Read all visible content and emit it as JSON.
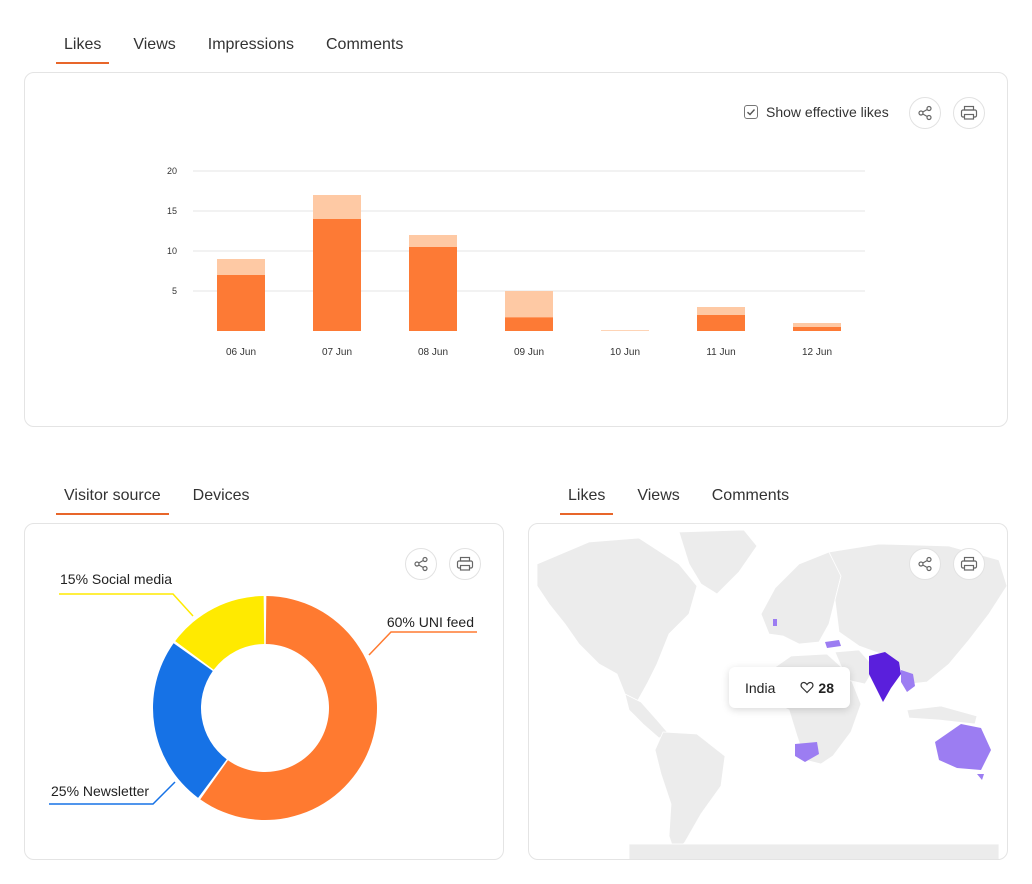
{
  "top_tabs": [
    {
      "label": "Likes",
      "active": true
    },
    {
      "label": "Views",
      "active": false
    },
    {
      "label": "Impressions",
      "active": false
    },
    {
      "label": "Comments",
      "active": false
    }
  ],
  "likes_card": {
    "show_effective_likes": {
      "label": "Show effective likes",
      "checked": true
    }
  },
  "colors": {
    "accent": "#e8662a",
    "bar_effective": "#fd7a35",
    "bar_total": "#fec9a4",
    "donut_uni_feed": "#ff7a30",
    "donut_newsletter": "#1672e6",
    "donut_social": "#ffea00",
    "map_india": "#5a1fdc",
    "map_highlight": "#9c7df2"
  },
  "chart_data": {
    "type": "bar",
    "categories": [
      "06 Jun",
      "07 Jun",
      "08 Jun",
      "09 Jun",
      "10 Jun",
      "11 Jun",
      "12 Jun"
    ],
    "series": [
      {
        "values": [
          7,
          14,
          10.5,
          1.7,
          0,
          2,
          0.5
        ]
      },
      {
        "values": [
          9,
          17,
          12,
          5,
          0.1,
          3,
          1
        ]
      }
    ],
    "yticks": [
      5,
      10,
      15,
      20
    ],
    "ylim": [
      0,
      20
    ],
    "grid": true,
    "stacked_overlay": true
  },
  "visitor_tabs": [
    {
      "label": "Visitor source",
      "active": true
    },
    {
      "label": "Devices",
      "active": false
    }
  ],
  "donut": {
    "slices": [
      {
        "label": "60% UNI feed",
        "percent": 60,
        "color": "#ff7a30"
      },
      {
        "label": "25% Newsletter",
        "percent": 25,
        "color": "#1672e6"
      },
      {
        "label": "15% Social media",
        "percent": 15,
        "color": "#ffea00"
      }
    ]
  },
  "map_tabs": [
    {
      "label": "Likes",
      "active": true
    },
    {
      "label": "Views",
      "active": false
    },
    {
      "label": "Comments",
      "active": false
    }
  ],
  "map": {
    "tooltip": {
      "country": "India",
      "value": "28"
    },
    "highlighted_countries": [
      "India",
      "Australia",
      "South Africa",
      "Turkey",
      "Bangladesh",
      "Myanmar",
      "Thailand",
      "Portugal"
    ]
  },
  "icons": {
    "share": "share-icon",
    "print": "print-icon",
    "heart": "heart-icon",
    "check": "check-icon"
  }
}
